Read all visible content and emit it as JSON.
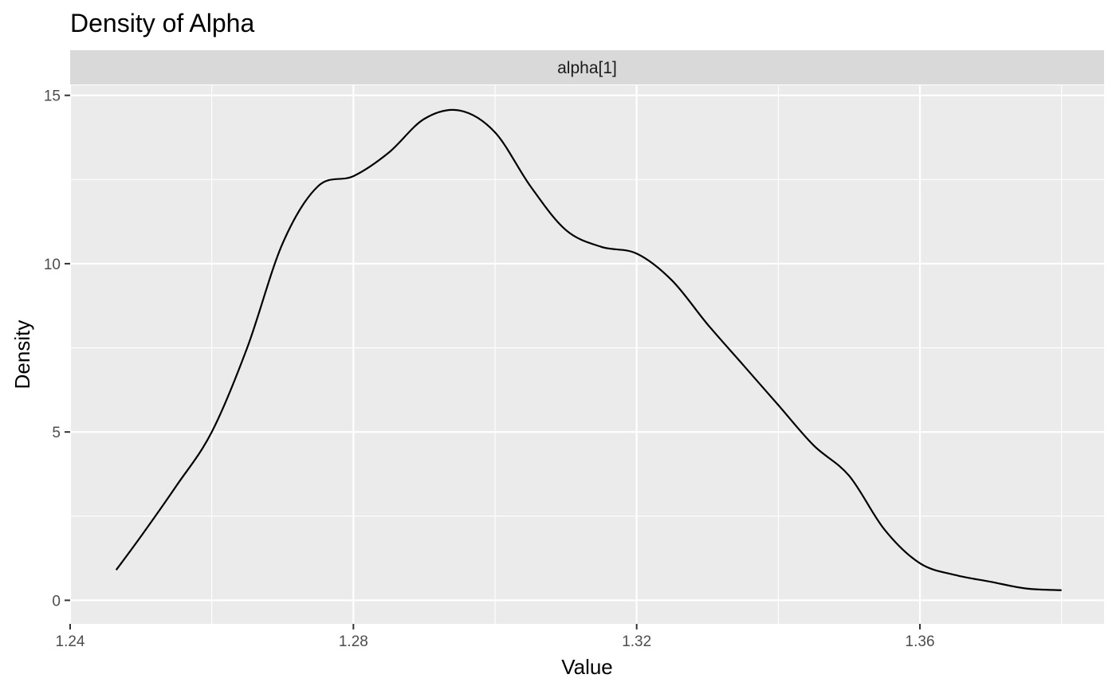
{
  "chart_data": {
    "type": "line",
    "title": "Density of Alpha",
    "facet_label": "alpha[1]",
    "xlabel": "Value",
    "ylabel": "Density",
    "xlim": [
      1.24,
      1.386
    ],
    "ylim": [
      -0.7,
      15.3
    ],
    "x_ticks": [
      1.24,
      1.28,
      1.32,
      1.36
    ],
    "x_tick_labels": [
      "1.24",
      "1.28",
      "1.32",
      "1.36"
    ],
    "y_ticks": [
      0,
      5,
      10,
      15
    ],
    "y_tick_labels": [
      "0",
      "5",
      "10",
      "15"
    ],
    "grid": true,
    "series": [
      {
        "x": [
          1.2465,
          1.25,
          1.255,
          1.26,
          1.265,
          1.27,
          1.275,
          1.28,
          1.285,
          1.29,
          1.295,
          1.3,
          1.305,
          1.31,
          1.315,
          1.32,
          1.325,
          1.33,
          1.335,
          1.34,
          1.345,
          1.35,
          1.355,
          1.36,
          1.365,
          1.37,
          1.375,
          1.38
        ],
        "y": [
          0.9,
          1.9,
          3.4,
          5.0,
          7.5,
          10.6,
          12.3,
          12.6,
          13.3,
          14.3,
          14.55,
          13.9,
          12.3,
          11.0,
          10.5,
          10.3,
          9.5,
          8.2,
          7.0,
          5.8,
          4.6,
          3.7,
          2.1,
          1.1,
          0.75,
          0.55,
          0.35,
          0.3
        ]
      }
    ],
    "colors": {
      "panel_background": "#ebebeb",
      "strip_background": "#d9d9d9",
      "grid": "#ffffff",
      "line": "#000000"
    }
  }
}
